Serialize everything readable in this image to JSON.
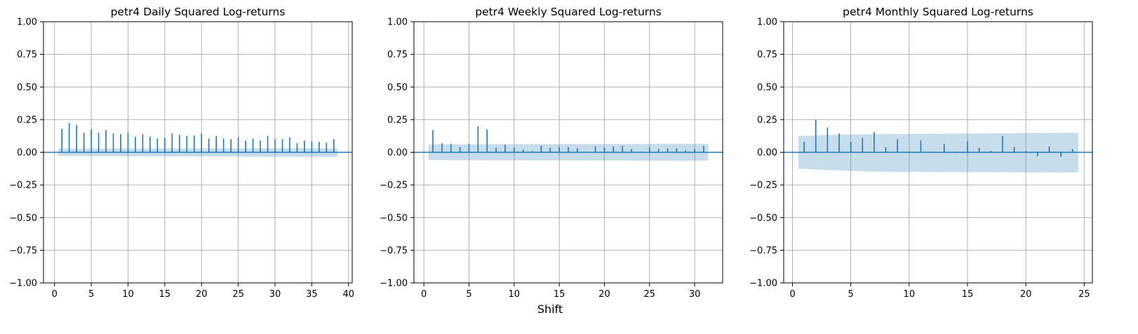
{
  "figure": {
    "xlabel": "Shift"
  },
  "chart_data": [
    {
      "type": "bar",
      "subtype": "stem (autocorrelation)",
      "title": "petr4 Daily Squared Log-returns",
      "xlim": [
        -1.5,
        40.5
      ],
      "ylim": [
        -1.0,
        1.0
      ],
      "xticks": [
        0,
        5,
        10,
        15,
        20,
        25,
        30,
        35,
        40
      ],
      "yticks": [
        "1.00",
        "0.75",
        "0.50",
        "0.25",
        "0.00",
        "−0.25",
        "−0.50",
        "−0.75",
        "−1.00"
      ],
      "grid": true,
      "x": [
        1,
        2,
        3,
        4,
        5,
        6,
        7,
        8,
        9,
        10,
        11,
        12,
        13,
        14,
        15,
        16,
        17,
        18,
        19,
        20,
        21,
        22,
        23,
        24,
        25,
        26,
        27,
        28,
        29,
        30,
        31,
        32,
        33,
        34,
        35,
        36,
        37,
        38
      ],
      "values": [
        0.18,
        0.225,
        0.21,
        0.15,
        0.175,
        0.15,
        0.17,
        0.145,
        0.14,
        0.15,
        0.12,
        0.14,
        0.12,
        0.105,
        0.11,
        0.145,
        0.135,
        0.125,
        0.13,
        0.145,
        0.105,
        0.125,
        0.105,
        0.1,
        0.115,
        0.09,
        0.105,
        0.09,
        0.125,
        0.1,
        0.1,
        0.115,
        0.07,
        0.09,
        0.085,
        0.08,
        0.075,
        0.1
      ],
      "confidence_band": {
        "x": [
          0.5,
          38.5
        ],
        "upper": [
          0.028,
          0.03
        ],
        "lower": [
          -0.028,
          -0.035
        ]
      }
    },
    {
      "type": "bar",
      "subtype": "stem (autocorrelation)",
      "title": "petr4 Weekly Squared Log-returns",
      "xlim": [
        -1.1,
        33.1
      ],
      "ylim": [
        -1.0,
        1.0
      ],
      "xticks": [
        0,
        5,
        10,
        15,
        20,
        25,
        30
      ],
      "yticks": [
        "1.00",
        "0.75",
        "0.50",
        "0.25",
        "0.00",
        "−0.25",
        "−0.50",
        "−0.75",
        "−1.00"
      ],
      "grid": true,
      "x": [
        1,
        2,
        3,
        4,
        5,
        6,
        7,
        8,
        9,
        10,
        11,
        12,
        13,
        14,
        15,
        16,
        17,
        18,
        19,
        20,
        21,
        22,
        23,
        24,
        25,
        26,
        27,
        28,
        29,
        30,
        31
      ],
      "values": [
        0.17,
        0.07,
        0.065,
        0.04,
        0.065,
        0.2,
        0.175,
        0.035,
        0.06,
        0.035,
        0.02,
        0.01,
        0.05,
        0.035,
        0.04,
        0.04,
        0.03,
        0.005,
        0.045,
        0.035,
        0.045,
        0.05,
        0.025,
        0.005,
        0.04,
        0.025,
        0.03,
        0.03,
        0.015,
        0.025,
        0.05
      ],
      "confidence_band": {
        "x": [
          0.5,
          31.5
        ],
        "upper": [
          0.06,
          0.065
        ],
        "lower": [
          -0.06,
          -0.065
        ]
      }
    },
    {
      "type": "bar",
      "subtype": "stem (autocorrelation)",
      "title": "petr4 Monthly Squared Log-returns",
      "xlim": [
        -0.75,
        25.7
      ],
      "ylim": [
        -1.0,
        1.0
      ],
      "xticks": [
        0,
        5,
        10,
        15,
        20,
        25
      ],
      "yticks": [
        "1.00",
        "0.75",
        "0.50",
        "0.25",
        "0.00",
        "−0.25",
        "−0.50",
        "−0.75",
        "−1.00"
      ],
      "grid": true,
      "x": [
        1,
        2,
        3,
        4,
        5,
        6,
        7,
        8,
        9,
        10,
        11,
        12,
        13,
        14,
        15,
        16,
        17,
        18,
        19,
        20,
        21,
        22,
        23,
        24
      ],
      "values": [
        0.08,
        0.25,
        0.19,
        0.145,
        0.08,
        0.11,
        0.155,
        0.04,
        0.1,
        0.005,
        0.09,
        0.0,
        0.065,
        -0.005,
        0.085,
        0.035,
        0.01,
        0.125,
        0.04,
        0.01,
        -0.03,
        0.045,
        -0.035,
        0.025
      ],
      "confidence_band": {
        "x": [
          0.5,
          4,
          8,
          24.5
        ],
        "upper": [
          0.125,
          0.135,
          0.14,
          0.15
        ],
        "lower": [
          -0.125,
          -0.14,
          -0.15,
          -0.155
        ]
      }
    }
  ]
}
